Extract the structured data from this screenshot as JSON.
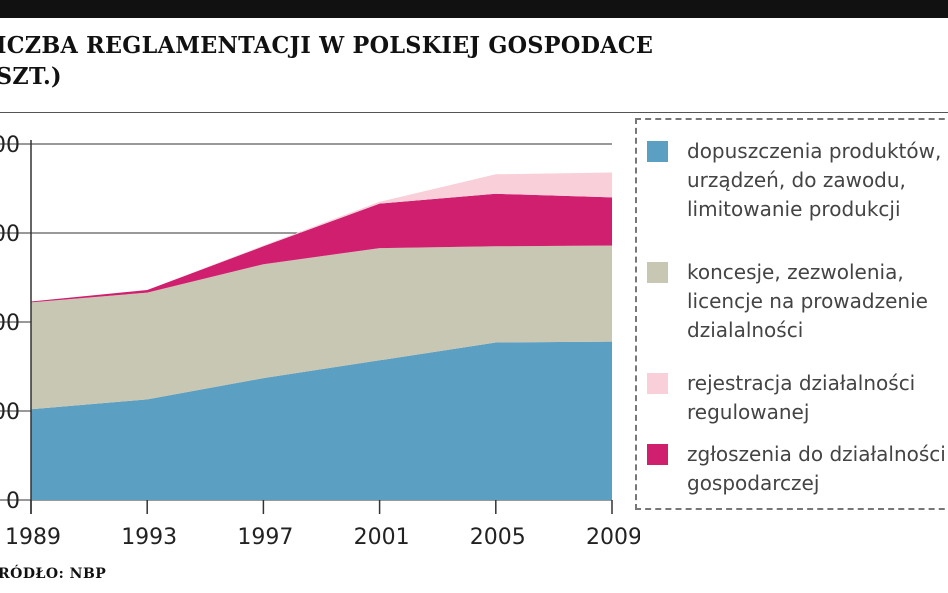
{
  "title": "ICZBA REGLAMENTACJI W POLSKIEJ GOSPODACE",
  "subtitle": "SZT.)",
  "source": "RÓDŁO: NBP",
  "chart_data": {
    "type": "area",
    "stacked": true,
    "x": [
      1989,
      1993,
      1997,
      2001,
      2005,
      2009
    ],
    "xlabel": "",
    "ylabel": "",
    "ylim": [
      0,
      400
    ],
    "y_tick_labels": [
      "0",
      "00",
      "00",
      "00",
      "00"
    ],
    "x_tick_labels": [
      "1989",
      "1993",
      "1997",
      "2001",
      "2005",
      "2009"
    ],
    "grid": "horizontal",
    "legend_position": "right",
    "series": [
      {
        "name": "dopuszczenia produktów, urządzeń, do zawodu, limitowanie produkcji",
        "color": "#5b9fc3",
        "values": [
          102,
          113,
          137,
          157,
          177,
          178
        ]
      },
      {
        "name": "koncesje, zezwolenia, licencje na prowadzenie działalności",
        "color": "#c7c7b3",
        "values": [
          120,
          120,
          128,
          126,
          108,
          108
        ]
      },
      {
        "name": "zgłoszenia do działalności gospodarczej",
        "color": "#d11f6f",
        "values": [
          1,
          3,
          20,
          50,
          59,
          54
        ]
      },
      {
        "name": "rejestracja działalności regulowanej",
        "color": "#f9d0da",
        "values": [
          0,
          0,
          1,
          2,
          22,
          28
        ]
      }
    ]
  },
  "legend": [
    {
      "lines": [
        "dopuszczenia produktów,",
        "urządzeń, do zawodu,",
        "limitowanie produkcji"
      ],
      "color": "#5b9fc3"
    },
    {
      "lines": [
        "koncesje, zezwolenia,",
        "licencje na prowadzenie",
        "dzialalności"
      ],
      "color": "#c7c7b3"
    },
    {
      "lines": [
        "rejestracja działalności",
        "regulowanej"
      ],
      "color": "#f9d0da"
    },
    {
      "lines": [
        "zgłoszenia do działalności",
        "gospodarczej"
      ],
      "color": "#d11f6f"
    }
  ]
}
